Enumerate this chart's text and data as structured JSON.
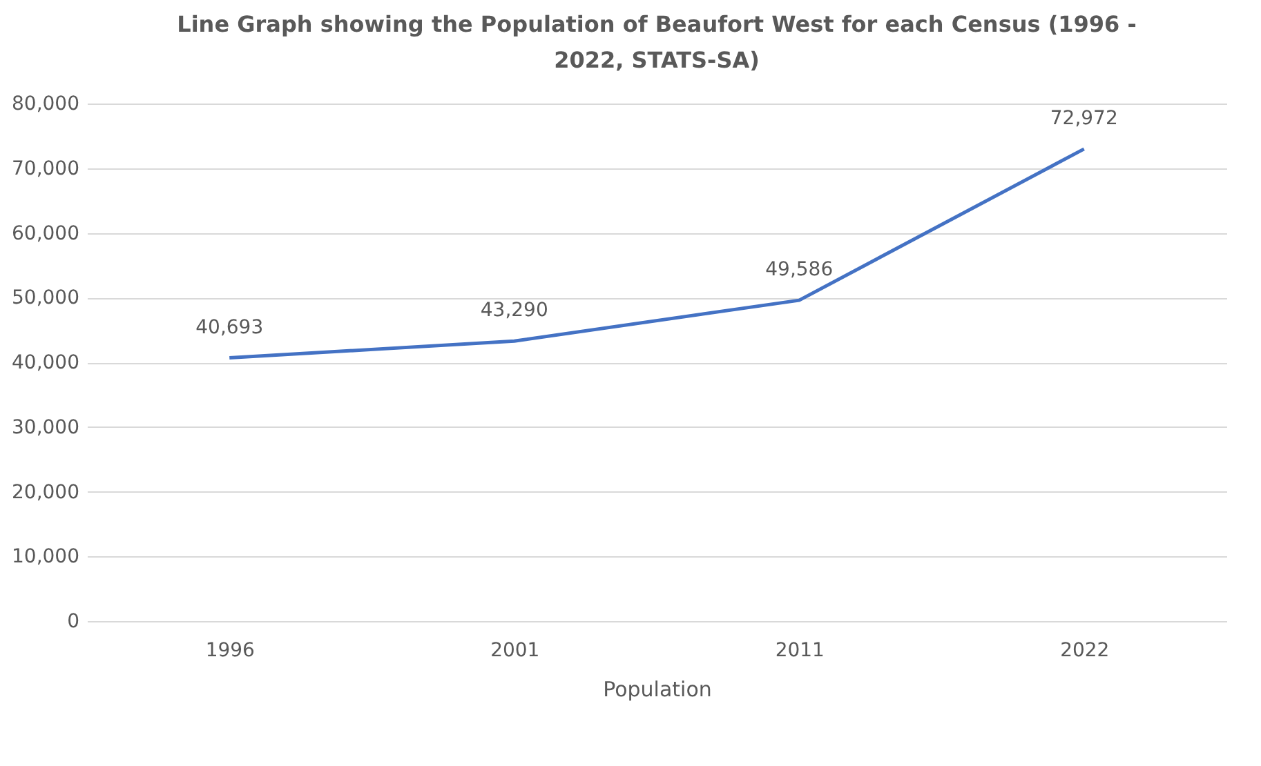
{
  "chart_data": {
    "type": "line",
    "title": "Line Graph showing the Population of Beaufort West for each Census (1996 - 2022, STATS-SA)",
    "xlabel": "Population",
    "categories": [
      "1996",
      "2001",
      "2011",
      "2022"
    ],
    "series": [
      {
        "color": "#4472c4",
        "values": [
          40693,
          43290,
          49586,
          72972
        ],
        "value_labels": [
          "40,693",
          "43,290",
          "49,586",
          "72,972"
        ]
      }
    ],
    "ylim": [
      0,
      80000
    ],
    "yticks": [
      {
        "value": 0,
        "label": "0"
      },
      {
        "value": 10000,
        "label": "10,000"
      },
      {
        "value": 20000,
        "label": "20,000"
      },
      {
        "value": 30000,
        "label": "30,000"
      },
      {
        "value": 40000,
        "label": "40,000"
      },
      {
        "value": 50000,
        "label": "50,000"
      },
      {
        "value": 60000,
        "label": "60,000"
      },
      {
        "value": 70000,
        "label": "70,000"
      },
      {
        "value": 80000,
        "label": "80,000"
      }
    ],
    "grid": "y",
    "legend": false,
    "marker": "none",
    "line_style": "solid"
  }
}
